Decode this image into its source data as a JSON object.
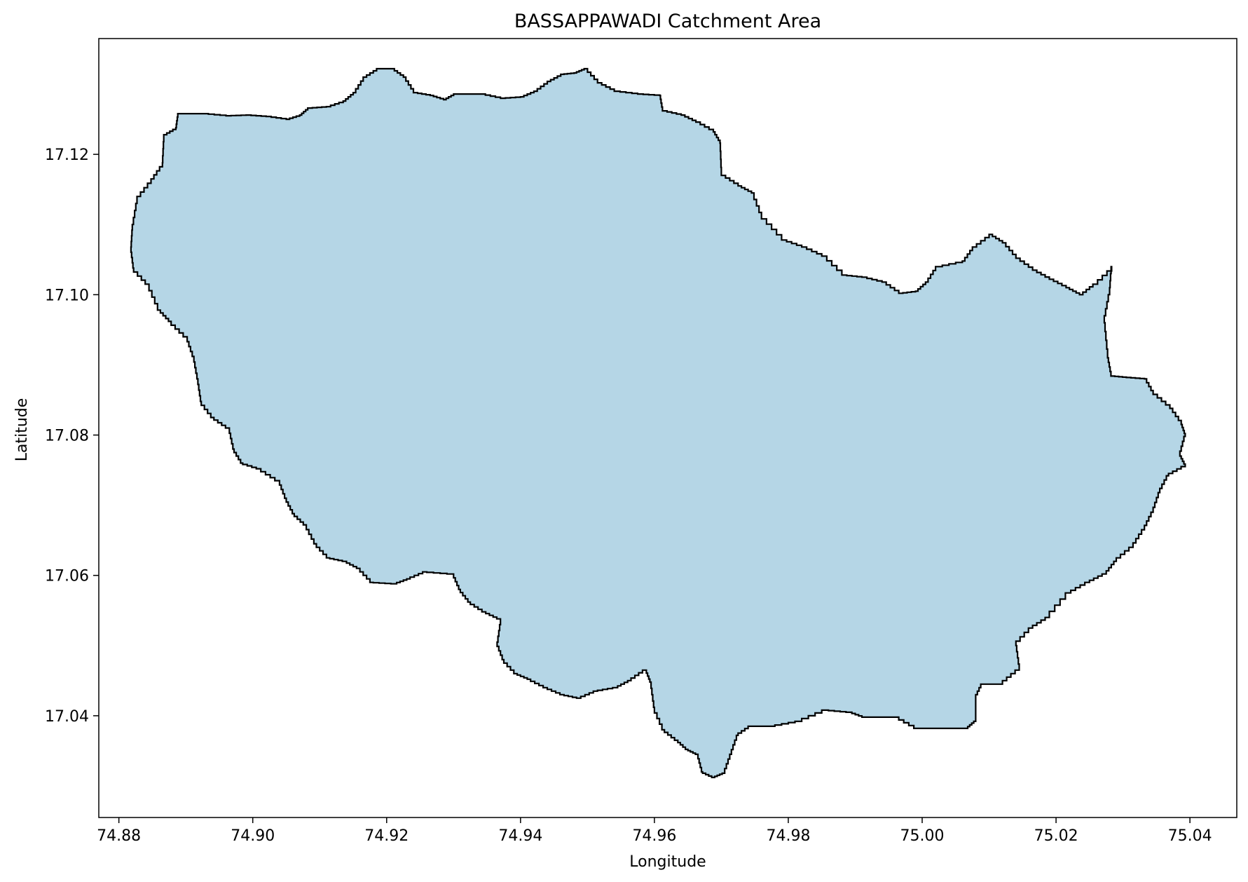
{
  "chart_data": {
    "type": "map",
    "title": "BASSAPPAWADI Catchment Area",
    "xlabel": "Longitude",
    "ylabel": "Latitude",
    "xlim": [
      74.877,
      75.047
    ],
    "ylim": [
      17.0255,
      17.1365
    ],
    "x_ticks": [
      74.88,
      74.9,
      74.92,
      74.94,
      74.96,
      74.98,
      75.0,
      75.02,
      75.04
    ],
    "x_tick_labels": [
      "74.88",
      "74.90",
      "74.92",
      "74.94",
      "74.96",
      "74.98",
      "75.00",
      "75.02",
      "75.04"
    ],
    "y_ticks": [
      17.04,
      17.06,
      17.08,
      17.1,
      17.12
    ],
    "y_tick_labels": [
      "17.04",
      "17.06",
      "17.08",
      "17.10",
      "17.12"
    ],
    "grid": false,
    "fill_color": "#b5d6e6",
    "edge_color": "#000000",
    "boundary": [
      [
        74.8865,
        17.1188
      ],
      [
        74.8867,
        17.1228
      ],
      [
        74.8885,
        17.1238
      ],
      [
        74.8888,
        17.1258
      ],
      [
        74.8925,
        17.1258
      ],
      [
        74.896,
        17.1255
      ],
      [
        74.899,
        17.1256
      ],
      [
        74.902,
        17.1254
      ],
      [
        74.905,
        17.125
      ],
      [
        74.907,
        17.1256
      ],
      [
        74.9082,
        17.1266
      ],
      [
        74.911,
        17.1268
      ],
      [
        74.9135,
        17.1276
      ],
      [
        74.915,
        17.1288
      ],
      [
        74.9165,
        17.131
      ],
      [
        74.9185,
        17.1322
      ],
      [
        74.9207,
        17.1322
      ],
      [
        74.9225,
        17.131
      ],
      [
        74.924,
        17.1288
      ],
      [
        74.9265,
        17.1284
      ],
      [
        74.9285,
        17.1278
      ],
      [
        74.93,
        17.1286
      ],
      [
        74.934,
        17.1286
      ],
      [
        74.937,
        17.128
      ],
      [
        74.94,
        17.1282
      ],
      [
        74.942,
        17.129
      ],
      [
        74.944,
        17.1304
      ],
      [
        74.946,
        17.1314
      ],
      [
        74.948,
        17.1316
      ],
      [
        74.9495,
        17.1322
      ],
      [
        74.9515,
        17.1302
      ],
      [
        74.954,
        17.129
      ],
      [
        74.9575,
        17.1286
      ],
      [
        74.9608,
        17.1284
      ],
      [
        74.9612,
        17.1262
      ],
      [
        74.964,
        17.1256
      ],
      [
        74.9662,
        17.1246
      ],
      [
        74.9688,
        17.1232
      ],
      [
        74.9698,
        17.1216
      ],
      [
        74.97,
        17.117
      ],
      [
        74.9725,
        17.1155
      ],
      [
        74.9745,
        17.1145
      ],
      [
        74.976,
        17.1108
      ],
      [
        74.979,
        17.1078
      ],
      [
        74.982,
        17.1068
      ],
      [
        74.985,
        17.1055
      ],
      [
        74.988,
        17.1028
      ],
      [
        74.991,
        17.1025
      ],
      [
        74.994,
        17.1018
      ],
      [
        74.9965,
        17.1002
      ],
      [
        74.999,
        17.1005
      ],
      [
        75.0005,
        17.1018
      ],
      [
        75.002,
        17.104
      ],
      [
        75.006,
        17.1048
      ],
      [
        75.0075,
        17.1068
      ],
      [
        75.01,
        17.1086
      ],
      [
        75.012,
        17.1074
      ],
      [
        75.014,
        17.1052
      ],
      [
        75.0165,
        17.1035
      ],
      [
        75.019,
        17.1022
      ],
      [
        75.0215,
        17.101
      ],
      [
        75.0235,
        17.1
      ],
      [
        75.0255,
        17.1015
      ],
      [
        75.0283,
        17.104
      ],
      [
        75.028,
        17.1
      ],
      [
        75.0272,
        17.096
      ],
      [
        75.0277,
        17.091
      ],
      [
        75.0282,
        17.0884
      ],
      [
        75.0305,
        17.0882
      ],
      [
        75.0332,
        17.088
      ],
      [
        75.0345,
        17.0858
      ],
      [
        75.037,
        17.0838
      ],
      [
        75.0387,
        17.0815
      ],
      [
        75.0393,
        17.0798
      ],
      [
        75.0385,
        17.077
      ],
      [
        75.0393,
        17.0755
      ],
      [
        75.0368,
        17.0742
      ],
      [
        75.0355,
        17.0718
      ],
      [
        75.0345,
        17.069
      ],
      [
        75.0332,
        17.0665
      ],
      [
        75.0315,
        17.064
      ],
      [
        75.029,
        17.062
      ],
      [
        75.0275,
        17.0602
      ],
      [
        75.025,
        17.059
      ],
      [
        75.0222,
        17.0575
      ],
      [
        75.019,
        17.054
      ],
      [
        75.0165,
        17.0525
      ],
      [
        75.014,
        17.05
      ],
      [
        75.0145,
        17.0465
      ],
      [
        75.012,
        17.0445
      ],
      [
        75.009,
        17.0445
      ],
      [
        75.008,
        17.0425
      ],
      [
        75.008,
        17.0392
      ],
      [
        75.0068,
        17.0382
      ],
      [
        74.9995,
        17.0382
      ],
      [
        74.9965,
        17.0398
      ],
      [
        74.9915,
        17.0398
      ],
      [
        74.9895,
        17.0405
      ],
      [
        74.986,
        17.0408
      ],
      [
        74.982,
        17.0392
      ],
      [
        74.978,
        17.0385
      ],
      [
        74.9745,
        17.0385
      ],
      [
        74.9725,
        17.0372
      ],
      [
        74.9715,
        17.0345
      ],
      [
        74.9705,
        17.0318
      ],
      [
        74.969,
        17.0312
      ],
      [
        74.9672,
        17.032
      ],
      [
        74.9665,
        17.0345
      ],
      [
        74.965,
        17.0352
      ],
      [
        74.9635,
        17.0365
      ],
      [
        74.9615,
        17.038
      ],
      [
        74.96,
        17.0412
      ],
      [
        74.9595,
        17.0448
      ],
      [
        74.9588,
        17.0465
      ],
      [
        74.9565,
        17.045
      ],
      [
        74.9545,
        17.044
      ],
      [
        74.9515,
        17.0435
      ],
      [
        74.949,
        17.0425
      ],
      [
        74.9465,
        17.043
      ],
      [
        74.944,
        17.044
      ],
      [
        74.9415,
        17.0452
      ],
      [
        74.9395,
        17.046
      ],
      [
        74.9375,
        17.048
      ],
      [
        74.9365,
        17.0505
      ],
      [
        74.937,
        17.0538
      ],
      [
        74.9348,
        17.0548
      ],
      [
        74.9325,
        17.0562
      ],
      [
        74.931,
        17.058
      ],
      [
        74.93,
        17.0602
      ],
      [
        74.926,
        17.0605
      ],
      [
        74.9235,
        17.0595
      ],
      [
        74.9215,
        17.0588
      ],
      [
        74.918,
        17.059
      ],
      [
        74.916,
        17.061
      ],
      [
        74.914,
        17.062
      ],
      [
        74.9115,
        17.0625
      ],
      [
        74.9095,
        17.0645
      ],
      [
        74.908,
        17.0672
      ],
      [
        74.9062,
        17.0688
      ],
      [
        74.905,
        17.071
      ],
      [
        74.904,
        17.0735
      ],
      [
        74.9012,
        17.0752
      ],
      [
        74.8985,
        17.076
      ],
      [
        74.8972,
        17.078
      ],
      [
        74.8965,
        17.081
      ],
      [
        74.8942,
        17.0825
      ],
      [
        74.8923,
        17.0848
      ],
      [
        74.8918,
        17.088
      ],
      [
        74.8912,
        17.0912
      ],
      [
        74.8902,
        17.094
      ],
      [
        74.8878,
        17.0962
      ],
      [
        74.8862,
        17.0978
      ],
      [
        74.8845,
        17.1015
      ],
      [
        74.8822,
        17.1038
      ],
      [
        74.8818,
        17.1068
      ],
      [
        74.882,
        17.11
      ],
      [
        74.8827,
        17.114
      ],
      [
        74.8848,
        17.1165
      ],
      [
        74.8865,
        17.1188
      ]
    ]
  }
}
